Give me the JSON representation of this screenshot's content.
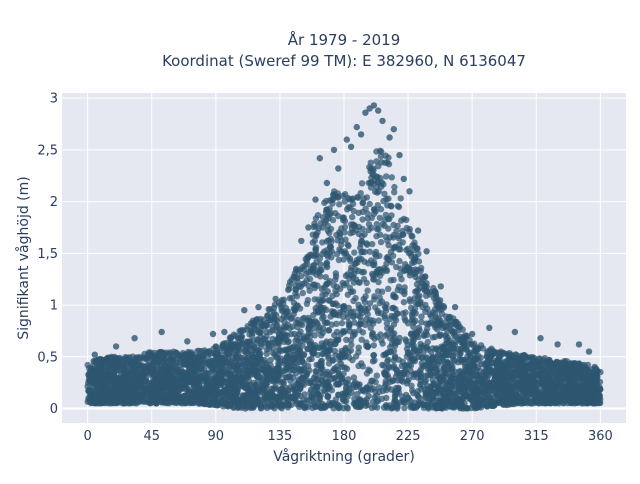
{
  "chart_data": {
    "type": "scatter",
    "title_line1": "År 1979 - 2019",
    "title_line2": "Koordinat (Sweref 99 TM): E 382960, N 6136047",
    "xlabel": "Vågriktning (grader)",
    "ylabel": "Signifikant våghöjd (m)",
    "xlim": [
      -18,
      378
    ],
    "ylim": [
      -0.14,
      3.05
    ],
    "x_ticks": [
      0,
      45,
      90,
      135,
      180,
      225,
      270,
      315,
      360
    ],
    "x_tick_labels": [
      "0",
      "45",
      "90",
      "135",
      "180",
      "225",
      "270",
      "315",
      "360"
    ],
    "y_ticks": [
      0,
      0.5,
      1,
      1.5,
      2,
      2.5,
      3
    ],
    "y_tick_labels": [
      "0",
      "0,5",
      "1",
      "1,5",
      "2",
      "2,5",
      "3"
    ],
    "grid": true,
    "colors": {
      "marker": "#2e5670",
      "plot_background": "#e5e8f0",
      "grid": "#ffffff",
      "text": "#2a3f5f"
    },
    "series": [
      {
        "envelope": {
          "x": [
            0,
            15,
            30,
            45,
            60,
            75,
            90,
            105,
            120,
            135,
            150,
            160,
            170,
            180,
            190,
            200,
            210,
            220,
            230,
            240,
            250,
            270,
            290,
            315,
            340,
            360
          ],
          "y_min": [
            0.05,
            0.05,
            0.05,
            0.05,
            0.05,
            0.05,
            0.03,
            0.0,
            0.0,
            0.0,
            0.0,
            0.0,
            0.0,
            0.0,
            0.0,
            0.0,
            0.0,
            0.0,
            0.0,
            0.0,
            0.0,
            0.0,
            0.03,
            0.05,
            0.05,
            0.05
          ],
          "y_max": [
            0.45,
            0.5,
            0.5,
            0.55,
            0.55,
            0.55,
            0.6,
            0.75,
            0.9,
            1.05,
            1.45,
            1.85,
            2.1,
            2.1,
            2.1,
            2.5,
            2.5,
            2.05,
            1.6,
            1.25,
            1.0,
            0.65,
            0.55,
            0.5,
            0.45,
            0.4
          ]
        },
        "points": [
          {
            "x": 20,
            "y": 0.6
          },
          {
            "x": 33,
            "y": 0.68
          },
          {
            "x": 52,
            "y": 0.74
          },
          {
            "x": 70,
            "y": 0.65
          },
          {
            "x": 88,
            "y": 0.72
          },
          {
            "x": 96,
            "y": 0.74
          },
          {
            "x": 110,
            "y": 0.95
          },
          {
            "x": 120,
            "y": 0.98
          },
          {
            "x": 132,
            "y": 1.06
          },
          {
            "x": 150,
            "y": 1.62
          },
          {
            "x": 155,
            "y": 1.75
          },
          {
            "x": 160,
            "y": 2.02
          },
          {
            "x": 163,
            "y": 2.42
          },
          {
            "x": 168,
            "y": 2.18
          },
          {
            "x": 173,
            "y": 2.5
          },
          {
            "x": 176,
            "y": 2.32
          },
          {
            "x": 182,
            "y": 2.6
          },
          {
            "x": 185,
            "y": 2.53
          },
          {
            "x": 189,
            "y": 2.72
          },
          {
            "x": 192,
            "y": 2.65
          },
          {
            "x": 195,
            "y": 2.86
          },
          {
            "x": 198,
            "y": 2.9
          },
          {
            "x": 201,
            "y": 2.93
          },
          {
            "x": 204,
            "y": 2.88
          },
          {
            "x": 207,
            "y": 2.78
          },
          {
            "x": 212,
            "y": 2.62
          },
          {
            "x": 215,
            "y": 2.7
          },
          {
            "x": 219,
            "y": 2.45
          },
          {
            "x": 222,
            "y": 2.22
          },
          {
            "x": 226,
            "y": 2.1
          },
          {
            "x": 232,
            "y": 1.72
          },
          {
            "x": 238,
            "y": 1.52
          },
          {
            "x": 248,
            "y": 1.18
          },
          {
            "x": 258,
            "y": 0.98
          },
          {
            "x": 270,
            "y": 0.72
          },
          {
            "x": 282,
            "y": 0.78
          },
          {
            "x": 300,
            "y": 0.74
          },
          {
            "x": 318,
            "y": 0.68
          },
          {
            "x": 330,
            "y": 0.62
          },
          {
            "x": 345,
            "y": 0.62
          },
          {
            "x": 352,
            "y": 0.55
          },
          {
            "x": 5,
            "y": 0.52
          }
        ]
      }
    ]
  }
}
